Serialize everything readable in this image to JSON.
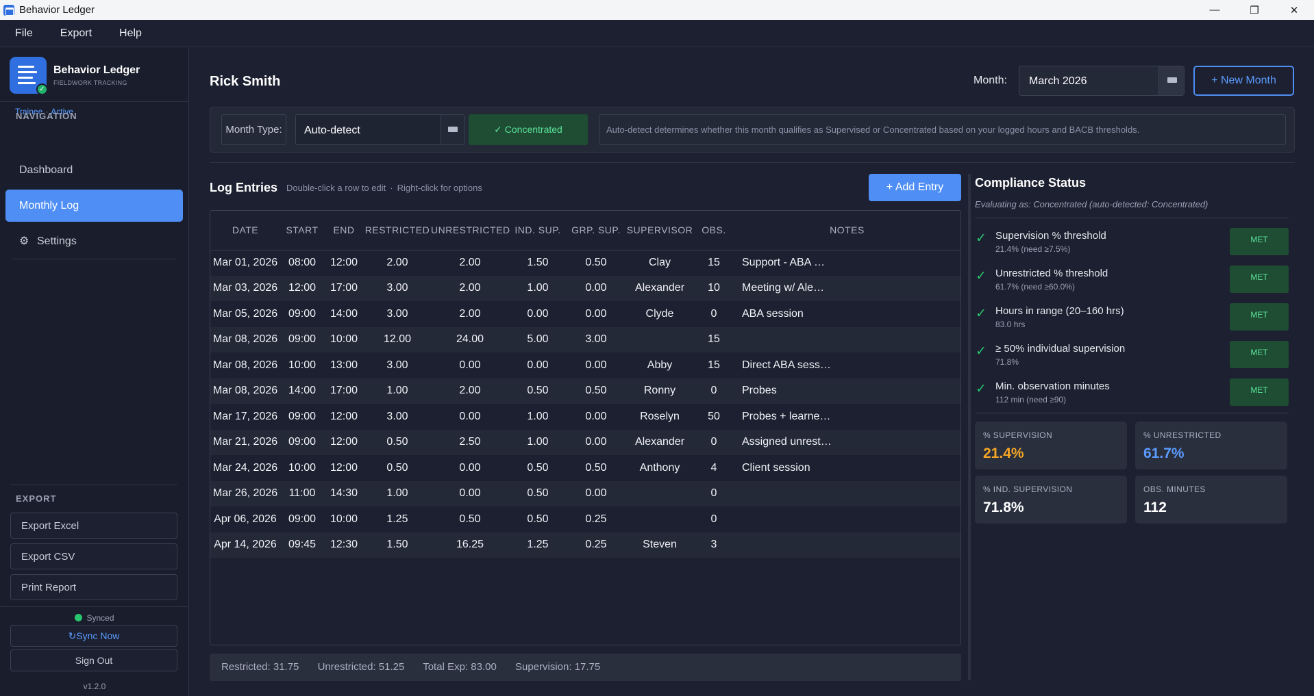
{
  "window": {
    "title": "Behavior Ledger",
    "controls": [
      "—",
      "❐",
      "✕"
    ]
  },
  "menu": [
    "File",
    "Export",
    "Help"
  ],
  "sidebar": {
    "brand_name": "Behavior Ledger",
    "brand_sub": "FIELDWORK TRACKING",
    "role": "Trainee",
    "status": "Active",
    "nav_heading": "NAVIGATION",
    "nav_items": [
      "Dashboard",
      "Monthly Log",
      "Settings"
    ],
    "export_heading": "EXPORT",
    "export_buttons": [
      "Export Excel",
      "Export CSV",
      "Print Report"
    ],
    "sync_status": "Synced",
    "sync_now": "Sync Now",
    "sign_out": "Sign Out",
    "version": "v1.2.0"
  },
  "header": {
    "trainee_name": "Rick Smith",
    "month_label": "Month:",
    "month_value": "March 2026",
    "new_month": "New Month"
  },
  "month_type": {
    "label": "Month Type:",
    "value": "Auto-detect",
    "badge": "Concentrated",
    "hint": "Auto-detect determines whether this month qualifies as Supervised or Concentrated based on your logged hours and BACB thresholds."
  },
  "log": {
    "title": "Log Entries",
    "hint_1": "Double-click a row to edit",
    "hint_2": "Right-click for options",
    "add_entry": "Add Entry",
    "columns": [
      "DATE",
      "START",
      "END",
      "RESTRICTED",
      "UNRESTRICTED",
      "IND. SUP.",
      "GRP. SUP.",
      "SUPERVISOR",
      "OBS.",
      "NOTES"
    ],
    "rows": [
      [
        "Mar 01, 2026",
        "08:00",
        "12:00",
        "2.00",
        "2.00",
        "1.50",
        "0.50",
        "Clay",
        "15",
        "Support - ABA …"
      ],
      [
        "Mar 03, 2026",
        "12:00",
        "17:00",
        "3.00",
        "2.00",
        "1.00",
        "0.00",
        "Alexander",
        "10",
        "Meeting w/ Ale…"
      ],
      [
        "Mar 05, 2026",
        "09:00",
        "14:00",
        "3.00",
        "2.00",
        "0.00",
        "0.00",
        "Clyde",
        "0",
        "ABA session"
      ],
      [
        "Mar 08, 2026",
        "09:00",
        "10:00",
        "12.00",
        "24.00",
        "5.00",
        "3.00",
        "",
        "15",
        ""
      ],
      [
        "Mar 08, 2026",
        "10:00",
        "13:00",
        "3.00",
        "0.00",
        "0.00",
        "0.00",
        "Abby",
        "15",
        "Direct ABA sess…"
      ],
      [
        "Mar 08, 2026",
        "14:00",
        "17:00",
        "1.00",
        "2.00",
        "0.50",
        "0.50",
        "Ronny",
        "0",
        "Probes"
      ],
      [
        "Mar 17, 2026",
        "09:00",
        "12:00",
        "3.00",
        "0.00",
        "1.00",
        "0.00",
        "Roselyn",
        "50",
        "Probes + learne…"
      ],
      [
        "Mar 21, 2026",
        "09:00",
        "12:00",
        "0.50",
        "2.50",
        "1.00",
        "0.00",
        "Alexander",
        "0",
        "Assigned unrest…"
      ],
      [
        "Mar 24, 2026",
        "10:00",
        "12:00",
        "0.50",
        "0.00",
        "0.50",
        "0.50",
        "Anthony",
        "4",
        "Client session"
      ],
      [
        "Mar 26, 2026",
        "11:00",
        "14:30",
        "1.00",
        "0.00",
        "0.50",
        "0.00",
        "",
        "0",
        ""
      ],
      [
        "Apr 06, 2026",
        "09:00",
        "10:00",
        "1.25",
        "0.50",
        "0.50",
        "0.25",
        "",
        "0",
        ""
      ],
      [
        "Apr 14, 2026",
        "09:45",
        "12:30",
        "1.50",
        "16.25",
        "1.25",
        "0.25",
        "Steven",
        "3",
        ""
      ]
    ],
    "totals": {
      "restricted": "Restricted: 31.75",
      "unrestricted": "Unrestricted: 51.25",
      "total": "Total Exp: 83.00",
      "supervision": "Supervision: 17.75"
    }
  },
  "compliance": {
    "title": "Compliance Status",
    "evaluating": "Evaluating as: Concentrated  (auto-detected: Concentrated)",
    "criteria": [
      {
        "name": "Supervision % threshold",
        "detail": "21.4%  (need ≥7.5%)",
        "status": "MET"
      },
      {
        "name": "Unrestricted % threshold",
        "detail": "61.7%  (need ≥60.0%)",
        "status": "MET"
      },
      {
        "name": "Hours in range (20–160 hrs)",
        "detail": "83.0 hrs",
        "status": "MET"
      },
      {
        "name": "≥ 50% individual supervision",
        "detail": "71.8%",
        "status": "MET"
      },
      {
        "name": "Min. observation minutes",
        "detail": "112 min  (need ≥90)",
        "status": "MET"
      }
    ],
    "stats": [
      {
        "label": "% SUPERVISION",
        "value": "21.4%",
        "color": "#f5a524"
      },
      {
        "label": "% UNRESTRICTED",
        "value": "61.7%",
        "color": "#5b9cff"
      },
      {
        "label": "% IND. SUPERVISION",
        "value": "71.8%",
        "color": "#ffffff"
      },
      {
        "label": "OBS. MINUTES",
        "value": "112",
        "color": "#ffffff"
      }
    ]
  },
  "colors": {
    "accent": "#4f8ff5",
    "success": "#28c76f",
    "warning": "#f5a524",
    "bg": "#1c2030"
  }
}
